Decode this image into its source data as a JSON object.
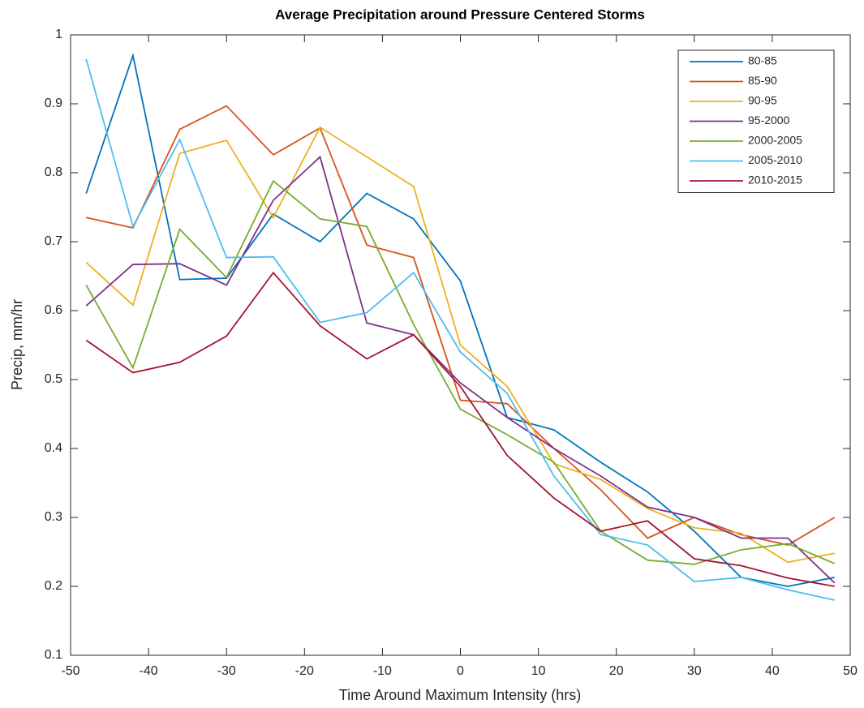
{
  "chart_data": {
    "type": "line",
    "title": "Average Precipitation around Pressure Centered Storms",
    "x_label": "Time Around Maximum Intensity (hrs)",
    "y_label": "Precip, mm/hr",
    "x": [
      -48,
      -42,
      -36,
      -30,
      -24,
      -18,
      -12,
      -6,
      0,
      6,
      12,
      18,
      24,
      30,
      36,
      42,
      48
    ],
    "xlim": [
      -50,
      50
    ],
    "xticks": [
      -50,
      -40,
      -30,
      -20,
      -10,
      0,
      10,
      20,
      30,
      40,
      50
    ],
    "ylim": [
      0.1,
      1
    ],
    "yticks": [
      0.1,
      0.2,
      0.3,
      0.4,
      0.5,
      0.6,
      0.7,
      0.8,
      0.9,
      1
    ],
    "grid": false,
    "legend_location": "northeast",
    "series": [
      {
        "name": "80-85",
        "color": "#0072bd",
        "values": [
          0.77,
          0.97,
          0.645,
          0.647,
          0.74,
          0.7,
          0.77,
          0.733,
          0.643,
          0.445,
          0.427,
          0.38,
          0.337,
          0.28,
          0.213,
          0.2,
          0.213
        ]
      },
      {
        "name": "85-90",
        "color": "#d95319",
        "values": [
          0.735,
          0.72,
          0.863,
          0.897,
          0.826,
          0.865,
          0.695,
          0.677,
          0.47,
          0.465,
          0.4,
          0.34,
          0.27,
          0.3,
          0.275,
          0.26,
          0.3
        ]
      },
      {
        "name": "90-95",
        "color": "#edb120",
        "values": [
          0.67,
          0.608,
          0.828,
          0.847,
          0.735,
          0.866,
          0.823,
          0.78,
          0.55,
          0.49,
          0.378,
          0.355,
          0.313,
          0.285,
          0.277,
          0.235,
          0.248
        ]
      },
      {
        "name": "95-2000",
        "color": "#7e2f8e",
        "values": [
          0.607,
          0.667,
          0.668,
          0.637,
          0.76,
          0.823,
          0.582,
          0.565,
          0.495,
          0.445,
          0.4,
          0.36,
          0.315,
          0.3,
          0.27,
          0.27,
          0.205
        ]
      },
      {
        "name": "2000-2005",
        "color": "#77ac30",
        "values": [
          0.637,
          0.517,
          0.718,
          0.648,
          0.788,
          0.733,
          0.722,
          0.58,
          0.457,
          0.42,
          0.38,
          0.28,
          0.238,
          0.232,
          0.253,
          0.262,
          0.233
        ]
      },
      {
        "name": "2005-2010",
        "color": "#4dbeee",
        "values": [
          0.965,
          0.722,
          0.848,
          0.677,
          0.678,
          0.583,
          0.597,
          0.655,
          0.54,
          0.48,
          0.36,
          0.275,
          0.26,
          0.207,
          0.213,
          0.195,
          0.18
        ]
      },
      {
        "name": "2010-2015",
        "color": "#a2142f",
        "values": [
          0.557,
          0.51,
          0.525,
          0.563,
          0.655,
          0.578,
          0.53,
          0.565,
          0.49,
          0.39,
          0.328,
          0.28,
          0.295,
          0.24,
          0.23,
          0.212,
          0.2
        ]
      }
    ]
  }
}
